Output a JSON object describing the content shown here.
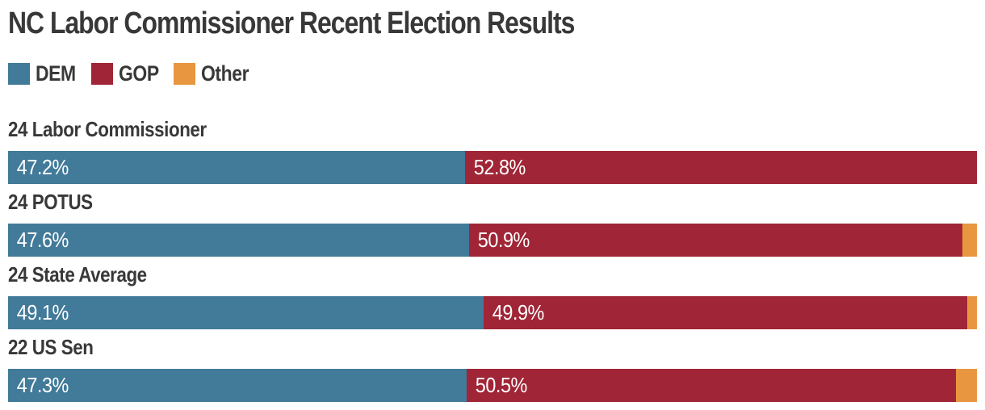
{
  "title": "NC Labor Commissioner Recent Election Results",
  "legend": {
    "items": [
      {
        "label": "DEM",
        "color": "#427a99"
      },
      {
        "label": "GOP",
        "color": "#a02536"
      },
      {
        "label": "Other",
        "color": "#e89640"
      }
    ]
  },
  "chart_data": {
    "type": "bar",
    "orientation": "horizontal",
    "stacked": true,
    "title": "NC Labor Commissioner Recent Election Results",
    "categories": [
      "24 Labor Commissioner",
      "24 POTUS",
      "24 State Average",
      "22 US Sen"
    ],
    "series": [
      {
        "name": "DEM",
        "color": "#427a99",
        "values": [
          47.2,
          47.6,
          49.1,
          47.3
        ],
        "display": [
          "47.2%",
          "47.6%",
          "49.1%",
          "47.3%"
        ]
      },
      {
        "name": "GOP",
        "color": "#a02536",
        "values": [
          52.8,
          50.9,
          49.9,
          50.5
        ],
        "display": [
          "52.8%",
          "50.9%",
          "49.9%",
          "50.5%"
        ]
      },
      {
        "name": "Other",
        "color": "#e89640",
        "values": [
          0,
          1.5,
          1.0,
          2.2
        ]
      }
    ],
    "xlim": [
      0,
      100
    ],
    "unit": "%",
    "grid": false,
    "legend_position": "top-left",
    "value_label_color": "#ffffff",
    "text_color": "#383838",
    "background": "#ffffff"
  }
}
